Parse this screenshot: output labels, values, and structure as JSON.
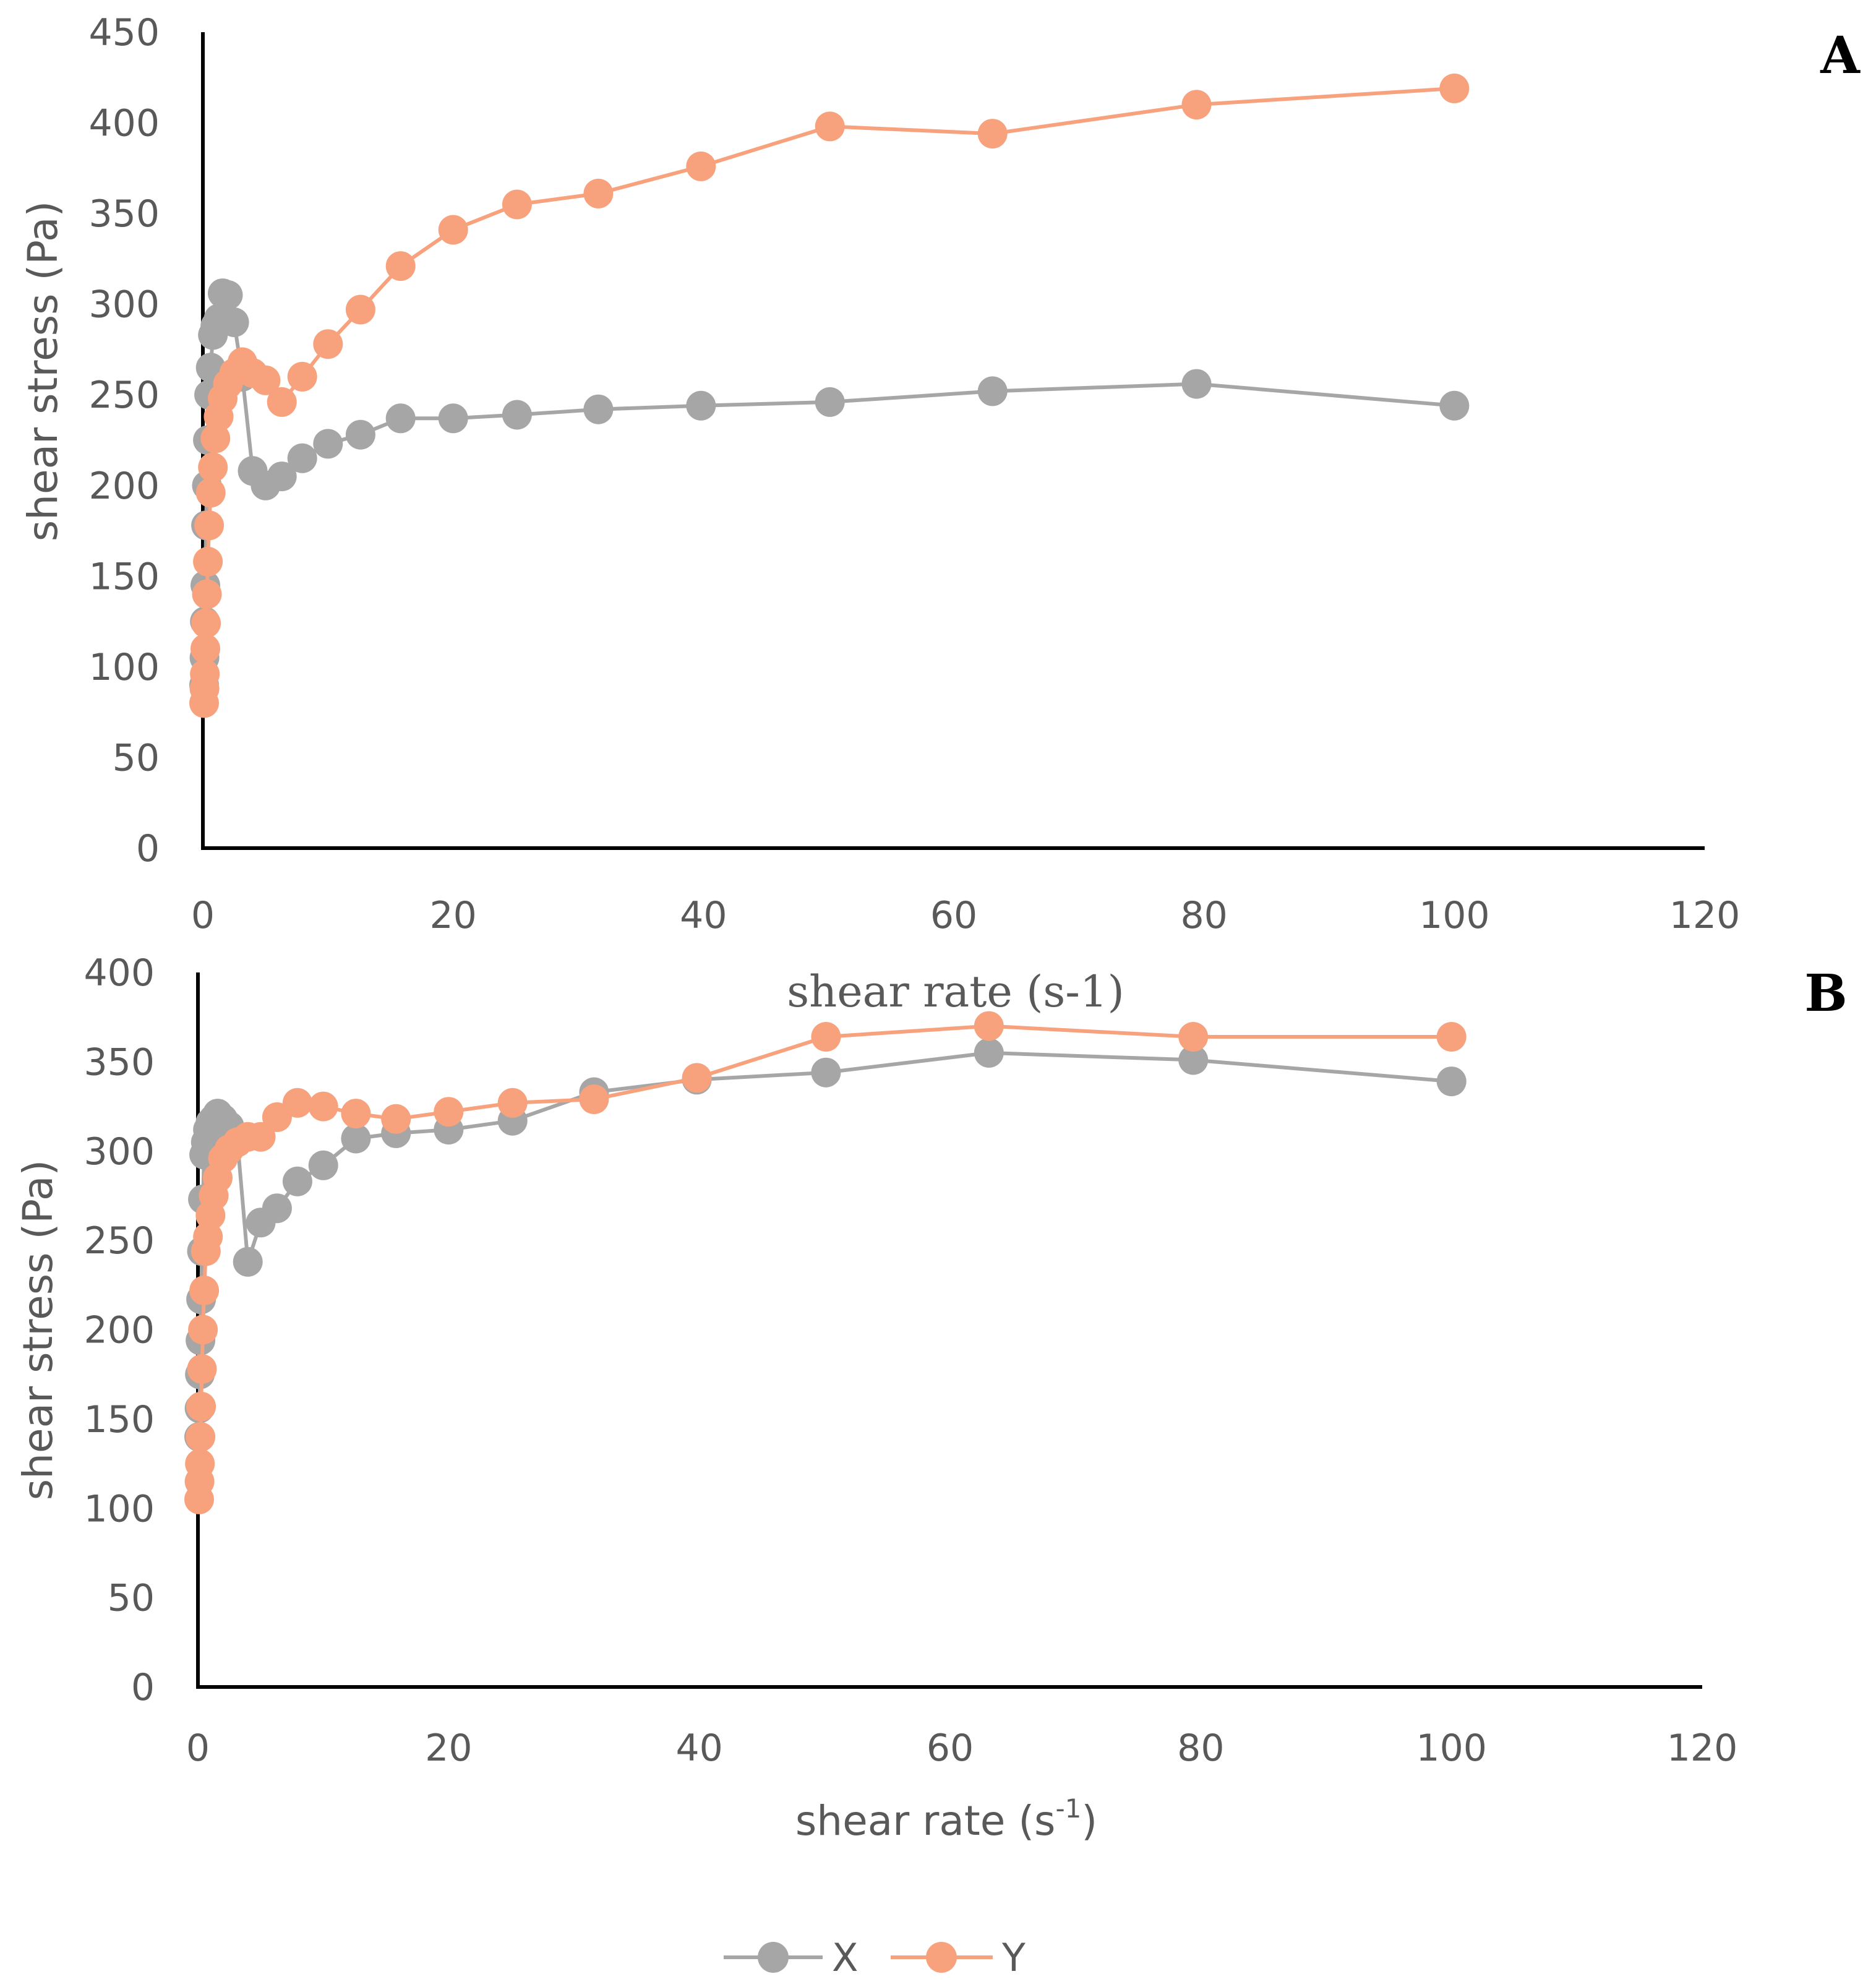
{
  "colors": {
    "X": "#a6a6a6",
    "Y": "#f7a27d",
    "axis": "#000000",
    "text": "#595959"
  },
  "legend": {
    "items": [
      {
        "key": "X",
        "label": "X"
      },
      {
        "key": "Y",
        "label": "Y"
      }
    ]
  },
  "chart_data": [
    {
      "type": "line",
      "panel": "A",
      "xlabel": "shear rate (s-1)",
      "ylabel": "shear stress (Pa)",
      "xlim": [
        0,
        120
      ],
      "ylim": [
        0,
        450
      ],
      "xticks": [
        0,
        20,
        40,
        60,
        80,
        100,
        120
      ],
      "yticks": [
        0,
        50,
        100,
        150,
        200,
        250,
        300,
        350,
        400,
        450
      ],
      "series": [
        {
          "name": "X",
          "x": [
            0.1,
            0.13,
            0.16,
            0.2,
            0.25,
            0.32,
            0.4,
            0.5,
            0.63,
            0.8,
            1.0,
            1.26,
            1.58,
            2.0,
            2.5,
            3.16,
            3.98,
            5.01,
            6.31,
            7.94,
            10.0,
            12.6,
            15.8,
            20.0,
            25.1,
            31.6,
            39.8,
            50.1,
            63.1,
            79.4,
            100.0
          ],
          "y": [
            90,
            105,
            125,
            145,
            178,
            200,
            225,
            250,
            265,
            283,
            288,
            292,
            306,
            305,
            290,
            260,
            208,
            200,
            205,
            215,
            223,
            228,
            237,
            237,
            239,
            242,
            244,
            246,
            252,
            256,
            244
          ]
        },
        {
          "name": "Y",
          "x": [
            0.1,
            0.13,
            0.16,
            0.2,
            0.25,
            0.32,
            0.4,
            0.5,
            0.63,
            0.8,
            1.0,
            1.26,
            1.58,
            2.0,
            2.5,
            3.16,
            3.98,
            5.01,
            6.31,
            7.94,
            10.0,
            12.6,
            15.8,
            20.0,
            25.1,
            31.6,
            39.8,
            50.1,
            63.1,
            79.4,
            100.0
          ],
          "y": [
            80,
            88,
            96,
            110,
            124,
            140,
            158,
            178,
            196,
            210,
            226,
            238,
            248,
            256,
            262,
            268,
            262,
            258,
            246,
            260,
            278,
            297,
            321,
            341,
            355,
            361,
            376,
            398,
            394,
            410,
            419
          ]
        }
      ]
    },
    {
      "type": "line",
      "panel": "B",
      "xlabel_main": "shear rate (s",
      "xlabel_sup": "-1",
      "xlabel_end": ")",
      "ylabel": "shear stress (Pa)",
      "xlim": [
        0,
        120
      ],
      "ylim": [
        0,
        400
      ],
      "xticks": [
        0,
        20,
        40,
        60,
        80,
        100,
        120
      ],
      "yticks": [
        0,
        50,
        100,
        150,
        200,
        250,
        300,
        350,
        400
      ],
      "series": [
        {
          "name": "X",
          "x": [
            0.1,
            0.13,
            0.16,
            0.2,
            0.25,
            0.32,
            0.4,
            0.5,
            0.63,
            0.8,
            1.0,
            1.26,
            1.58,
            2.0,
            2.5,
            3.16,
            3.98,
            5.01,
            6.31,
            7.94,
            10.0,
            12.6,
            15.8,
            20.0,
            25.1,
            31.6,
            39.8,
            50.1,
            63.1,
            79.4,
            100.0
          ],
          "y": [
            140,
            156,
            175,
            194,
            217,
            244,
            273,
            298,
            305,
            312,
            316,
            318,
            321,
            318,
            314,
            305,
            238,
            260,
            268,
            283,
            292,
            307,
            310,
            312,
            317,
            333,
            340,
            344,
            355,
            351,
            339
          ]
        },
        {
          "name": "Y",
          "x": [
            0.1,
            0.13,
            0.16,
            0.2,
            0.25,
            0.32,
            0.4,
            0.5,
            0.63,
            0.8,
            1.0,
            1.26,
            1.58,
            2.0,
            2.5,
            3.16,
            3.98,
            5.01,
            6.31,
            7.94,
            10.0,
            12.6,
            15.8,
            20.0,
            25.1,
            31.6,
            39.8,
            50.1,
            63.1,
            79.4,
            100.0
          ],
          "y": [
            105,
            115,
            125,
            140,
            157,
            178,
            200,
            222,
            244,
            252,
            264,
            275,
            285,
            296,
            301,
            305,
            308,
            308,
            319,
            327,
            325,
            321,
            318,
            322,
            327,
            329,
            341,
            364,
            370,
            364,
            364
          ]
        }
      ]
    }
  ]
}
